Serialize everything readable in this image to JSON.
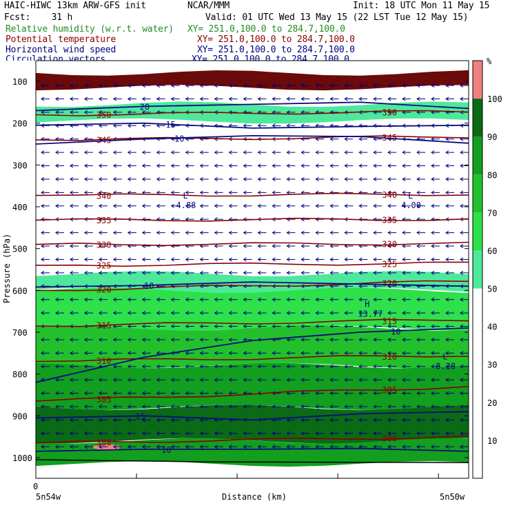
{
  "header": {
    "title_left": "HAIC-HIWC 13km ARW-GFS init",
    "org": "NCAR/MMM",
    "init": "Init: 18 UTC Mon 11 May 15",
    "fcst": "Fcst:    31 h",
    "valid": "Valid: 01 UTC Wed 13 May 15 (22 LST Tue 12 May 15)",
    "fields": [
      {
        "name": "Relative humidity (w.r.t. water)",
        "xy": "XY= 251.0,100.0 to 284.7,100.0",
        "color": "#228b22"
      },
      {
        "name": "Potential temperature",
        "xy": "XY= 251.0,100.0 to 284.7,100.0",
        "color": "#8b0000"
      },
      {
        "name": "Horizontal wind speed",
        "xy": "XY= 251.0,100.0 to 284.7,100.0",
        "color": "#000080"
      },
      {
        "name": "Circulation vectors",
        "xy": "XY= 251.0,100.0 to 284.7,100.0",
        "color": "#000080"
      }
    ]
  },
  "chart_data": {
    "type": "heatmap",
    "xlabel": "Distance (km)",
    "ylabel": "Pressure (hPa)",
    "x_start_label": "5n54w",
    "x_end_label": "5n50w",
    "x_zero_label": "0",
    "y_ticks": [
      100,
      200,
      300,
      400,
      500,
      600,
      700,
      800,
      900,
      1000
    ],
    "colorbar": {
      "unit": "%",
      "ticks": [
        10,
        20,
        30,
        40,
        50,
        60,
        70,
        80,
        90,
        100
      ],
      "bins": [
        {
          "from": 0,
          "to": 50,
          "color": "#ffffff"
        },
        {
          "from": 50,
          "to": 60,
          "color": "#4ee89a"
        },
        {
          "from": 60,
          "to": 70,
          "color": "#2ee04a"
        },
        {
          "from": 70,
          "to": 80,
          "color": "#22c12c"
        },
        {
          "from": 80,
          "to": 90,
          "color": "#129e1e"
        },
        {
          "from": 90,
          "to": 100,
          "color": "#0a6a16"
        },
        {
          "from": 100,
          "to": 110,
          "color": "#f08080"
        }
      ]
    },
    "humidity_layers": [
      {
        "p_top": 80,
        "p_bot": 115,
        "rh": 100,
        "color": "#6b0a0a"
      },
      {
        "p_top": 155,
        "p_bot": 195,
        "rh": 55,
        "color": "#4ee89a"
      },
      {
        "p_top": 560,
        "p_bot": 600,
        "rh": 55,
        "color": "#4ee89a"
      },
      {
        "p_top": 600,
        "p_bot": 690,
        "rh": 65,
        "color": "#2ee04a"
      },
      {
        "p_top": 690,
        "p_bot": 780,
        "rh": 75,
        "color": "#22c12c"
      },
      {
        "p_top": 780,
        "p_bot": 880,
        "rh": 85,
        "color": "#129e1e"
      },
      {
        "p_top": 880,
        "p_bot": 960,
        "rh": 95,
        "color": "#0a6a16"
      },
      {
        "p_top": 960,
        "p_bot": 1015,
        "rh": 85,
        "color": "#129e1e"
      }
    ],
    "theta_contours": [
      {
        "value": 350,
        "p_left": 180,
        "p_right": 172
      },
      {
        "value": 345,
        "p_left": 240,
        "p_right": 232
      },
      {
        "value": 340,
        "p_left": 373,
        "p_right": 370
      },
      {
        "value": 335,
        "p_left": 432,
        "p_right": 430
      },
      {
        "value": 330,
        "p_left": 490,
        "p_right": 488
      },
      {
        "value": 325,
        "p_left": 540,
        "p_right": 535
      },
      {
        "value": 320,
        "p_left": 600,
        "p_right": 578
      },
      {
        "value": 315,
        "p_left": 685,
        "p_right": 670
      },
      {
        "value": 310,
        "p_left": 770,
        "p_right": 755
      },
      {
        "value": 305,
        "p_left": 865,
        "p_right": 830
      },
      {
        "value": 300,
        "p_left": 965,
        "p_right": 950
      }
    ],
    "theta_labels": [
      "350",
      "345",
      "340",
      "335",
      "330",
      "325",
      "320",
      "315",
      "310",
      "305",
      "300"
    ],
    "wind_labels": [
      "20",
      "15",
      "10",
      "10",
      "10",
      "15",
      "10"
    ],
    "extrema": [
      {
        "type": "L",
        "value": "4.88"
      },
      {
        "type": "L",
        "value": "4.00"
      },
      {
        "type": "H",
        "value": "13.77"
      },
      {
        "type": "L",
        "value": "8.28"
      }
    ],
    "vectors": {
      "direction": "westward"
    }
  }
}
